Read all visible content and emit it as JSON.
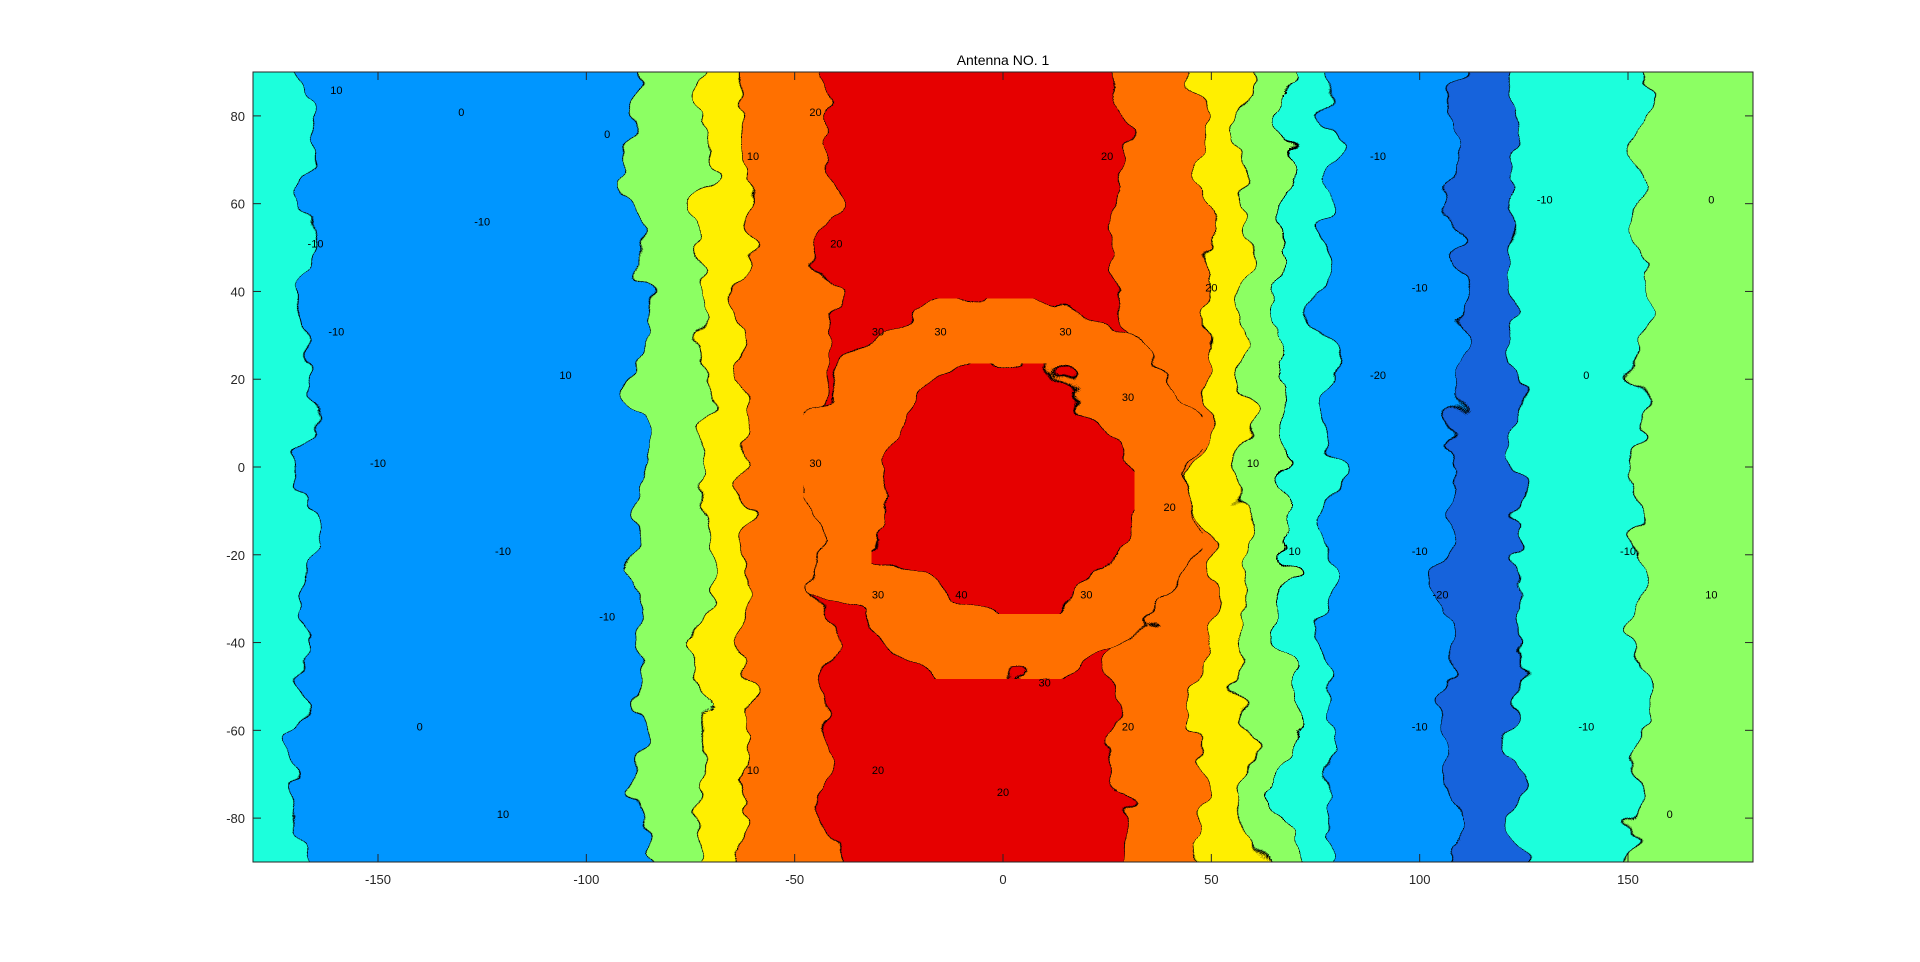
{
  "chart_data": {
    "type": "heatmap",
    "subtype": "filled-contour",
    "title": "Antenna NO. 1",
    "xlabel": "",
    "ylabel": "",
    "xlim": [
      -180,
      180
    ],
    "ylim": [
      -90,
      90
    ],
    "x_ticks": [
      -150,
      -100,
      -50,
      0,
      50,
      100,
      150
    ],
    "y_ticks": [
      80,
      60,
      40,
      20,
      0,
      -20,
      -40,
      -60,
      -80
    ],
    "grid": false,
    "colormap": "jet",
    "levels": [
      -40,
      -30,
      -20,
      -10,
      0,
      10,
      20,
      30
    ],
    "level_colors": {
      "-40": "#00008f",
      "-30": "#0a28c8",
      "-20": "#1464dc",
      "-10": "#0096ff",
      "0": "#1effdc",
      "10": "#8cff64",
      "20": "#ffef00",
      "30": "#ff7000",
      "40": "#e60000"
    },
    "zones": [
      {
        "x_range": [
          -180,
          -160
        ],
        "level": 0
      },
      {
        "x_range": [
          -160,
          -80
        ],
        "level": -10
      },
      {
        "x_range": [
          -80,
          -65
        ],
        "level": 10
      },
      {
        "x_range": [
          -65,
          -55
        ],
        "level": 20
      },
      {
        "x_range": [
          -55,
          -35
        ],
        "level": 30
      },
      {
        "x_range": [
          -35,
          35
        ],
        "level": 40
      },
      {
        "x_range": [
          35,
          55
        ],
        "level": 30
      },
      {
        "x_range": [
          55,
          65
        ],
        "level": 20
      },
      {
        "x_range": [
          65,
          75
        ],
        "level": 10
      },
      {
        "x_range": [
          75,
          85
        ],
        "level": 0
      },
      {
        "x_range": [
          85,
          115
        ],
        "level": -10
      },
      {
        "x_range": [
          115,
          130
        ],
        "level": -20
      },
      {
        "x_range": [
          130,
          160
        ],
        "level": 0
      },
      {
        "x_range": [
          160,
          180
        ],
        "level": 10
      }
    ],
    "contour_labels": [
      {
        "x": -160,
        "y": 85,
        "text": "10"
      },
      {
        "x": -130,
        "y": 80,
        "text": "0"
      },
      {
        "x": -95,
        "y": 75,
        "text": "0"
      },
      {
        "x": -165,
        "y": 50,
        "text": "-10"
      },
      {
        "x": -125,
        "y": 55,
        "text": "-10"
      },
      {
        "x": -160,
        "y": 30,
        "text": "-10"
      },
      {
        "x": -105,
        "y": 20,
        "text": "10"
      },
      {
        "x": -150,
        "y": 0,
        "text": "-10"
      },
      {
        "x": -120,
        "y": -20,
        "text": "-10"
      },
      {
        "x": -95,
        "y": -35,
        "text": "-10"
      },
      {
        "x": -140,
        "y": -60,
        "text": "0"
      },
      {
        "x": -120,
        "y": -80,
        "text": "10"
      },
      {
        "x": -60,
        "y": 70,
        "text": "10"
      },
      {
        "x": -45,
        "y": 80,
        "text": "20"
      },
      {
        "x": -40,
        "y": 50,
        "text": "20"
      },
      {
        "x": -30,
        "y": 30,
        "text": "30"
      },
      {
        "x": -45,
        "y": 0,
        "text": "30"
      },
      {
        "x": -30,
        "y": -30,
        "text": "30"
      },
      {
        "x": -10,
        "y": -30,
        "text": "40"
      },
      {
        "x": -15,
        "y": 30,
        "text": "30"
      },
      {
        "x": 15,
        "y": 30,
        "text": "30"
      },
      {
        "x": 30,
        "y": 15,
        "text": "30"
      },
      {
        "x": 20,
        "y": -30,
        "text": "30"
      },
      {
        "x": 10,
        "y": -50,
        "text": "30"
      },
      {
        "x": 40,
        "y": -10,
        "text": "20"
      },
      {
        "x": 25,
        "y": 70,
        "text": "20"
      },
      {
        "x": 50,
        "y": 40,
        "text": "20"
      },
      {
        "x": 60,
        "y": 0,
        "text": "10"
      },
      {
        "x": 30,
        "y": -60,
        "text": "20"
      },
      {
        "x": 0,
        "y": -75,
        "text": "20"
      },
      {
        "x": -30,
        "y": -70,
        "text": "20"
      },
      {
        "x": -60,
        "y": -70,
        "text": "10"
      },
      {
        "x": 70,
        "y": -20,
        "text": "10"
      },
      {
        "x": 90,
        "y": 70,
        "text": "-10"
      },
      {
        "x": 100,
        "y": 40,
        "text": "-10"
      },
      {
        "x": 90,
        "y": 20,
        "text": "-20"
      },
      {
        "x": 100,
        "y": -20,
        "text": "-10"
      },
      {
        "x": 105,
        "y": -30,
        "text": "-20"
      },
      {
        "x": 100,
        "y": -60,
        "text": "-10"
      },
      {
        "x": 130,
        "y": 60,
        "text": "-10"
      },
      {
        "x": 140,
        "y": 20,
        "text": "0"
      },
      {
        "x": 150,
        "y": -20,
        "text": "-10"
      },
      {
        "x": 140,
        "y": -60,
        "text": "-10"
      },
      {
        "x": 170,
        "y": 60,
        "text": "0"
      },
      {
        "x": 170,
        "y": -30,
        "text": "10"
      },
      {
        "x": 160,
        "y": -80,
        "text": "0"
      }
    ]
  }
}
